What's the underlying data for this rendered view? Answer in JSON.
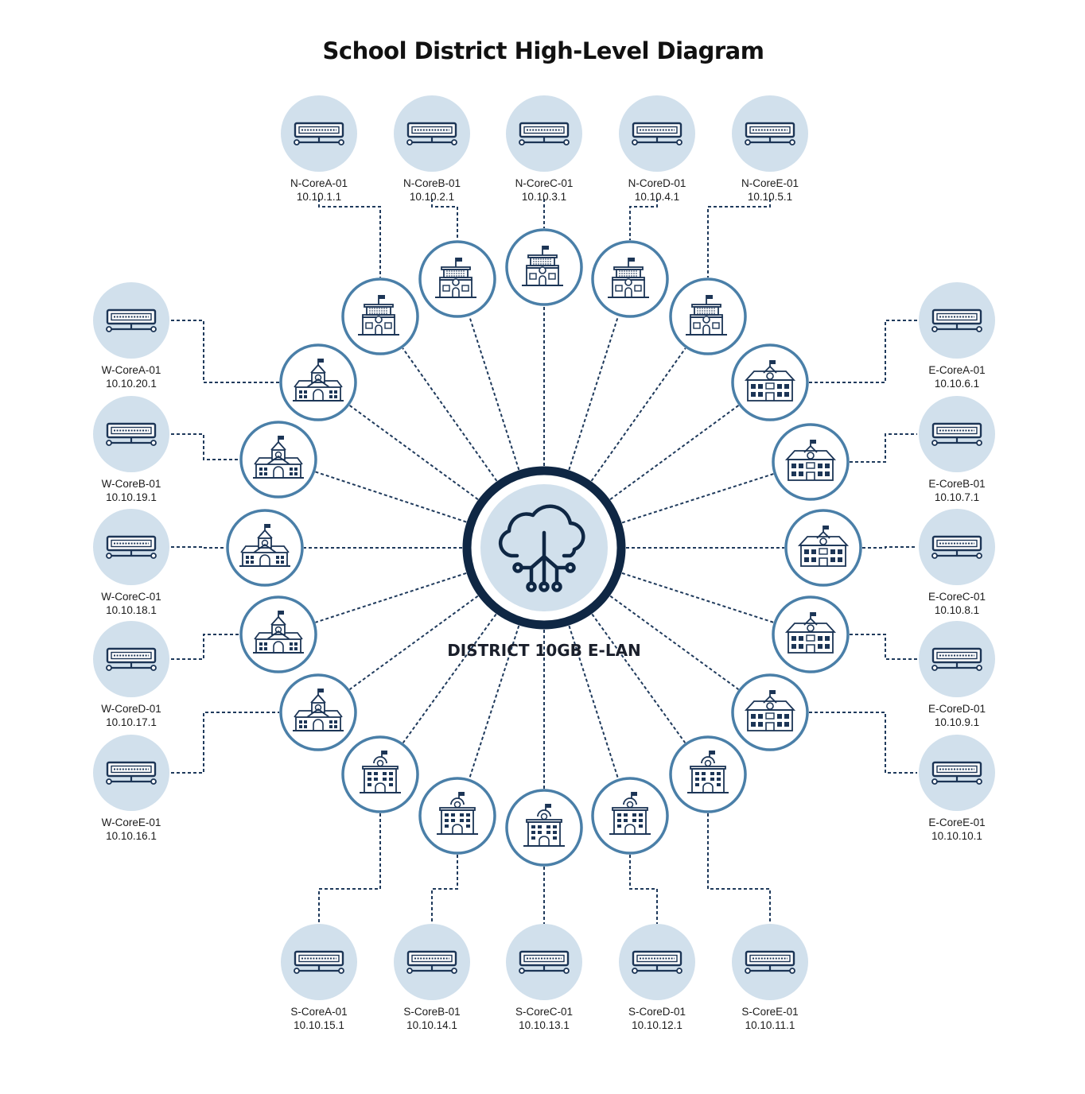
{
  "title": "School District High-Level Diagram",
  "hub": {
    "label": "DISTRICT 10GB E-LAN",
    "icon": "cloud-network-icon"
  },
  "colors": {
    "connector": "#1f3a5c",
    "core_fill": "#d1e0ec",
    "school_ring": "#4a7fa8",
    "icon_ink": "#1c3556"
  },
  "core_switches": {
    "north": [
      {
        "name": "N-CoreA-01",
        "ip": "10.10.1.1"
      },
      {
        "name": "N-CoreB-01",
        "ip": "10.10.2.1"
      },
      {
        "name": "N-CoreC-01",
        "ip": "10.10.3.1"
      },
      {
        "name": "N-CoreD-01",
        "ip": "10.10.4.1"
      },
      {
        "name": "N-CoreE-01",
        "ip": "10.10.5.1"
      }
    ],
    "east": [
      {
        "name": "E-CoreA-01",
        "ip": "10.10.6.1"
      },
      {
        "name": "E-CoreB-01",
        "ip": "10.10.7.1"
      },
      {
        "name": "E-CoreC-01",
        "ip": "10.10.8.1"
      },
      {
        "name": "E-CoreD-01",
        "ip": "10.10.9.1"
      },
      {
        "name": "E-CoreE-01",
        "ip": "10.10.10.1"
      }
    ],
    "south": [
      {
        "name": "S-CoreA-01",
        "ip": "10.10.15.1"
      },
      {
        "name": "S-CoreB-01",
        "ip": "10.10.14.1"
      },
      {
        "name": "S-CoreC-01",
        "ip": "10.10.13.1"
      },
      {
        "name": "S-CoreD-01",
        "ip": "10.10.12.1"
      },
      {
        "name": "S-CoreE-01",
        "ip": "10.10.11.1"
      }
    ],
    "west": [
      {
        "name": "W-CoreA-01",
        "ip": "10.10.20.1"
      },
      {
        "name": "W-CoreB-01",
        "ip": "10.10.19.1"
      },
      {
        "name": "W-CoreC-01",
        "ip": "10.10.18.1"
      },
      {
        "name": "W-CoreD-01",
        "ip": "10.10.17.1"
      },
      {
        "name": "W-CoreE-01",
        "ip": "10.10.16.1"
      }
    ]
  },
  "icons": {
    "core": "network-switch-icon",
    "school": "school-building-icon"
  }
}
